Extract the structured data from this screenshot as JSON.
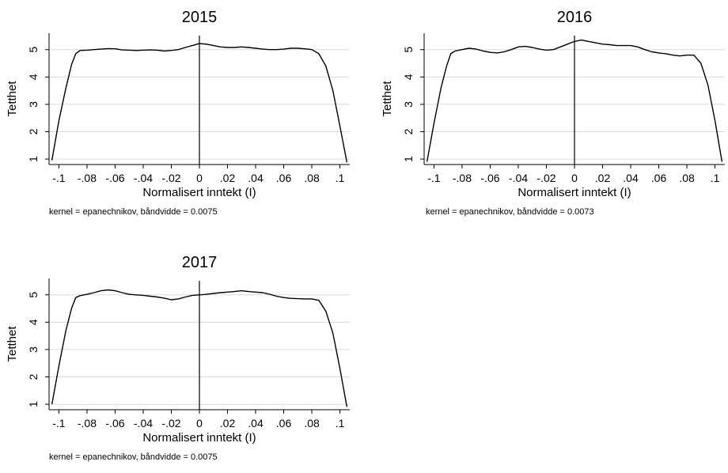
{
  "chart_data": [
    {
      "type": "line",
      "title": "2015",
      "xlabel": "Normalisert inntekt (I)",
      "ylabel": "Tetthet",
      "note": "kernel = epanechnikov, båndvidde = 0.0075",
      "xlim": [
        -0.107,
        0.107
      ],
      "ylim": [
        0.8,
        5.6
      ],
      "x_ticks": [
        -0.1,
        -0.08,
        -0.06,
        -0.04,
        -0.02,
        0,
        0.02,
        0.04,
        0.06,
        0.08,
        0.1
      ],
      "x_tick_labels": [
        "-.1",
        "-.08",
        "-.06",
        "-.04",
        "-.02",
        "0",
        ".02",
        ".04",
        ".06",
        ".08",
        ".1"
      ],
      "y_ticks": [
        1,
        2,
        3,
        4,
        5
      ],
      "y_tick_labels": [
        "1",
        "2",
        "3",
        "4",
        "5"
      ],
      "grid": true,
      "vline_x": 0,
      "series": [
        {
          "x": [
            -0.105,
            -0.1,
            -0.095,
            -0.091,
            -0.088,
            -0.085,
            -0.08,
            -0.075,
            -0.07,
            -0.065,
            -0.06,
            -0.055,
            -0.05,
            -0.045,
            -0.04,
            -0.035,
            -0.03,
            -0.025,
            -0.02,
            -0.015,
            -0.01,
            -0.005,
            0,
            0.005,
            0.01,
            0.015,
            0.02,
            0.025,
            0.03,
            0.035,
            0.04,
            0.045,
            0.05,
            0.055,
            0.06,
            0.065,
            0.07,
            0.075,
            0.08,
            0.085,
            0.09,
            0.095,
            0.1,
            0.105
          ],
          "y": [
            0.95,
            2.4,
            3.6,
            4.45,
            4.85,
            4.97,
            4.98,
            5.0,
            5.02,
            5.04,
            5.03,
            4.99,
            4.98,
            4.97,
            4.98,
            4.99,
            4.98,
            4.95,
            4.97,
            5.0,
            5.08,
            5.15,
            5.22,
            5.2,
            5.15,
            5.1,
            5.08,
            5.08,
            5.1,
            5.08,
            5.05,
            5.02,
            5.0,
            5.0,
            5.02,
            5.05,
            5.05,
            5.03,
            5.0,
            4.85,
            4.4,
            3.5,
            2.2,
            0.88
          ]
        }
      ]
    },
    {
      "type": "line",
      "title": "2016",
      "xlabel": "Normalisert inntekt (I)",
      "ylabel": "Tetthet",
      "note": "kernel = epanechnikov, båndvidde = 0.0073",
      "xlim": [
        -0.107,
        0.107
      ],
      "ylim": [
        0.8,
        5.6
      ],
      "x_ticks": [
        -0.1,
        -0.08,
        -0.06,
        -0.04,
        -0.02,
        0,
        0.02,
        0.04,
        0.06,
        0.08,
        0.1
      ],
      "x_tick_labels": [
        "-.1",
        "-.08",
        "-.06",
        "-.04",
        "-.02",
        "0",
        ".02",
        ".04",
        ".06",
        ".08",
        ".1"
      ],
      "y_ticks": [
        1,
        2,
        3,
        4,
        5
      ],
      "y_tick_labels": [
        "1",
        "2",
        "3",
        "4",
        "5"
      ],
      "grid": true,
      "vline_x": 0,
      "series": [
        {
          "x": [
            -0.105,
            -0.1,
            -0.095,
            -0.091,
            -0.088,
            -0.085,
            -0.08,
            -0.075,
            -0.07,
            -0.065,
            -0.06,
            -0.055,
            -0.05,
            -0.045,
            -0.04,
            -0.035,
            -0.03,
            -0.025,
            -0.02,
            -0.015,
            -0.01,
            -0.005,
            0,
            0.005,
            0.01,
            0.015,
            0.02,
            0.025,
            0.03,
            0.035,
            0.04,
            0.045,
            0.05,
            0.055,
            0.06,
            0.065,
            0.07,
            0.075,
            0.08,
            0.085,
            0.09,
            0.095,
            0.1,
            0.105
          ],
          "y": [
            0.9,
            2.3,
            3.6,
            4.4,
            4.85,
            4.95,
            5.0,
            5.05,
            5.02,
            4.95,
            4.9,
            4.88,
            4.92,
            5.0,
            5.1,
            5.12,
            5.08,
            5.02,
            4.98,
            5.0,
            5.1,
            5.2,
            5.3,
            5.35,
            5.3,
            5.25,
            5.2,
            5.18,
            5.15,
            5.15,
            5.15,
            5.1,
            5.0,
            4.92,
            4.88,
            4.85,
            4.8,
            4.77,
            4.8,
            4.8,
            4.5,
            3.7,
            2.4,
            0.9
          ]
        }
      ]
    },
    {
      "type": "line",
      "title": "2017",
      "xlabel": "Normalisert inntekt (I)",
      "ylabel": "Tetthet",
      "note": "kernel = epanechnikov, båndvidde = 0.0075",
      "xlim": [
        -0.107,
        0.107
      ],
      "ylim": [
        0.8,
        5.6
      ],
      "x_ticks": [
        -0.1,
        -0.08,
        -0.06,
        -0.04,
        -0.02,
        0,
        0.02,
        0.04,
        0.06,
        0.08,
        0.1
      ],
      "x_tick_labels": [
        "-.1",
        "-.08",
        "-.06",
        "-.04",
        "-.02",
        "0",
        ".02",
        ".04",
        ".06",
        ".08",
        ".1"
      ],
      "y_ticks": [
        1,
        2,
        3,
        4,
        5
      ],
      "y_tick_labels": [
        "1",
        "2",
        "3",
        "4",
        "5"
      ],
      "grid": true,
      "vline_x": 0,
      "series": [
        {
          "x": [
            -0.105,
            -0.1,
            -0.095,
            -0.091,
            -0.088,
            -0.085,
            -0.08,
            -0.075,
            -0.07,
            -0.065,
            -0.06,
            -0.055,
            -0.05,
            -0.045,
            -0.04,
            -0.035,
            -0.03,
            -0.025,
            -0.02,
            -0.015,
            -0.01,
            -0.005,
            0,
            0.005,
            0.01,
            0.015,
            0.02,
            0.025,
            0.03,
            0.035,
            0.04,
            0.045,
            0.05,
            0.055,
            0.06,
            0.065,
            0.07,
            0.075,
            0.08,
            0.085,
            0.09,
            0.095,
            0.1,
            0.105
          ],
          "y": [
            1.0,
            2.4,
            3.7,
            4.5,
            4.9,
            4.97,
            5.02,
            5.08,
            5.15,
            5.18,
            5.15,
            5.08,
            5.02,
            5.0,
            4.98,
            4.95,
            4.92,
            4.88,
            4.82,
            4.85,
            4.92,
            4.98,
            5.0,
            5.02,
            5.05,
            5.08,
            5.1,
            5.12,
            5.15,
            5.12,
            5.1,
            5.08,
            5.02,
            4.95,
            4.9,
            4.87,
            4.86,
            4.85,
            4.85,
            4.8,
            4.4,
            3.6,
            2.3,
            0.9
          ]
        }
      ]
    }
  ]
}
